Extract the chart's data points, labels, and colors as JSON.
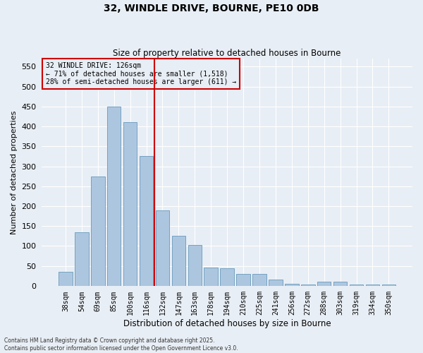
{
  "title_line1": "32, WINDLE DRIVE, BOURNE, PE10 0DB",
  "title_line2": "Size of property relative to detached houses in Bourne",
  "xlabel": "Distribution of detached houses by size in Bourne",
  "ylabel": "Number of detached properties",
  "categories": [
    "38sqm",
    "54sqm",
    "69sqm",
    "85sqm",
    "100sqm",
    "116sqm",
    "132sqm",
    "147sqm",
    "163sqm",
    "178sqm",
    "194sqm",
    "210sqm",
    "225sqm",
    "241sqm",
    "256sqm",
    "272sqm",
    "288sqm",
    "303sqm",
    "319sqm",
    "334sqm",
    "350sqm"
  ],
  "values": [
    35,
    135,
    275,
    450,
    410,
    325,
    190,
    125,
    103,
    46,
    45,
    30,
    30,
    15,
    5,
    4,
    10,
    10,
    4,
    3,
    4
  ],
  "bar_color": "#adc6df",
  "bar_edge_color": "#6699bb",
  "vline_color": "#cc0000",
  "vline_x": 5.5,
  "annotation_text_line1": "32 WINDLE DRIVE: 126sqm",
  "annotation_text_line2": "← 71% of detached houses are smaller (1,518)",
  "annotation_text_line3": "28% of semi-detached houses are larger (611) →",
  "annotation_box_edge_color": "#cc0000",
  "ylim": [
    0,
    570
  ],
  "yticks": [
    0,
    50,
    100,
    150,
    200,
    250,
    300,
    350,
    400,
    450,
    500,
    550
  ],
  "background_color": "#e8eef5",
  "grid_color": "#ffffff",
  "footer_line1": "Contains HM Land Registry data © Crown copyright and database right 2025.",
  "footer_line2": "Contains public sector information licensed under the Open Government Licence v3.0."
}
